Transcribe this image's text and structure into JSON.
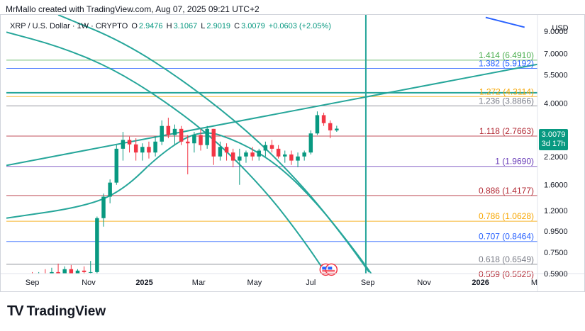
{
  "header": {
    "title": "MrMallo created with TradingView.com, Aug 07, 2025 09:21 UTC+2"
  },
  "symbol_bar": {
    "name": "XRP / U.S. Dollar · 1W · CRYPTO",
    "o_label": "O",
    "o": "2.9476",
    "h_label": "H",
    "h": "3.1067",
    "l_label": "L",
    "l": "2.9019",
    "c_label": "C",
    "c": "3.0079",
    "change": "+0.0603 (+2.05%)"
  },
  "price_tag": {
    "price": "3.0079",
    "countdown": "3d 17h",
    "color": "#089981"
  },
  "footer": {
    "logo_text": "TradingView"
  },
  "chart_data": {
    "type": "candlestick",
    "currency_label": "USD",
    "y_scale": "log",
    "ylim": [
      0.59,
      10.8
    ],
    "y_ticks": [
      {
        "label": "9.0000",
        "value": 9.0
      },
      {
        "label": "7.0000",
        "value": 7.0
      },
      {
        "label": "5.5000",
        "value": 5.5
      },
      {
        "label": "4.0000",
        "value": 4.0
      },
      {
        "label": "2.2000",
        "value": 2.2
      },
      {
        "label": "1.6000",
        "value": 1.6
      },
      {
        "label": "1.2000",
        "value": 1.2
      },
      {
        "label": "0.9500",
        "value": 0.95
      },
      {
        "label": "0.7500",
        "value": 0.75
      },
      {
        "label": "0.5900",
        "value": 0.59
      }
    ],
    "x_ticks": [
      {
        "label": "Sep",
        "week": 0
      },
      {
        "label": "Nov",
        "week": 8.7
      },
      {
        "label": "2025",
        "week": 17.3
      },
      {
        "label": "Mar",
        "week": 25.7
      },
      {
        "label": "May",
        "week": 34.3
      },
      {
        "label": "Jul",
        "week": 43.0
      },
      {
        "label": "Sep",
        "week": 51.8
      },
      {
        "label": "Nov",
        "week": 60.5
      },
      {
        "label": "2026",
        "week": 69.2
      },
      {
        "label": "M",
        "week": 77.5
      }
    ],
    "x_start_week": -4,
    "x_end_week": 78,
    "fib_levels": [
      {
        "label": "1.414 (6.4910)",
        "value": 6.491,
        "color": "#4caf50"
      },
      {
        "label": "1.382 (5.9192)",
        "value": 5.9192,
        "color": "#2962ff"
      },
      {
        "label": "1.272 (4.3114)",
        "value": 4.3114,
        "color": "#f7a600"
      },
      {
        "label": "1.236 (3.8866)",
        "value": 3.8866,
        "color": "#787b86"
      },
      {
        "label": "1.118 (2.7663)",
        "value": 2.7663,
        "color": "#b22833"
      },
      {
        "label": "1 (1.9690)",
        "value": 1.969,
        "color": "#673ab7"
      },
      {
        "label": "0.886 (1.4177)",
        "value": 1.4177,
        "color": "#b22833"
      },
      {
        "label": "0.786 (1.0628)",
        "value": 1.0628,
        "color": "#f7a600"
      },
      {
        "label": "0.707 (0.8464)",
        "value": 0.8464,
        "color": "#2962ff"
      },
      {
        "label": "0.618 (0.6549)",
        "value": 0.6549,
        "color": "#787b86"
      },
      {
        "label": "0.559 (0.5525)",
        "value": 0.5525,
        "color": "#b22833"
      }
    ],
    "horizontal_lines": [
      {
        "value": 4.5,
        "color": "#26a69a"
      }
    ],
    "vertical_lines": [
      {
        "week": 51.5,
        "color": "#26a69a"
      }
    ],
    "trendlines": [
      {
        "from": {
          "week": -4,
          "price": 1.99
        },
        "to": {
          "week": 78,
          "price": 6.2
        },
        "color": "#26a69a"
      },
      {
        "from": {
          "week": 70,
          "price": 10.5
        },
        "to": {
          "week": 76,
          "price": 9.4
        },
        "color": "#2962ff"
      }
    ],
    "curves": [
      {
        "color": "#26a69a",
        "points": [
          {
            "week": -4,
            "price": 8.9
          },
          {
            "week": 4,
            "price": 7.6
          },
          {
            "week": 12,
            "price": 6.0
          },
          {
            "week": 20,
            "price": 4.2
          },
          {
            "week": 28,
            "price": 2.7
          },
          {
            "week": 36,
            "price": 1.5
          },
          {
            "week": 42,
            "price": 0.85
          },
          {
            "week": 46,
            "price": 0.55
          }
        ]
      },
      {
        "color": "#26a69a",
        "points": [
          {
            "week": 4,
            "price": 10.8
          },
          {
            "week": 14,
            "price": 8.0
          },
          {
            "week": 24,
            "price": 5.0
          },
          {
            "week": 34,
            "price": 2.8
          },
          {
            "week": 42,
            "price": 1.55
          },
          {
            "week": 48,
            "price": 0.9
          },
          {
            "week": 52,
            "price": 0.6
          }
        ]
      },
      {
        "color": "#26a69a",
        "points": [
          {
            "week": -4,
            "price": 1.1
          },
          {
            "week": 8,
            "price": 1.25
          },
          {
            "week": 14,
            "price": 1.5
          },
          {
            "week": 20,
            "price": 2.3
          },
          {
            "week": 26,
            "price": 3.0
          },
          {
            "week": 32,
            "price": 2.6
          },
          {
            "week": 38,
            "price": 2.0
          },
          {
            "week": 44,
            "price": 1.3
          },
          {
            "week": 50,
            "price": 0.75
          },
          {
            "week": 53,
            "price": 0.55
          }
        ]
      }
    ],
    "candles": [
      {
        "w": 0,
        "o": 0.57,
        "h": 0.6,
        "l": 0.53,
        "c": 0.56
      },
      {
        "w": 1,
        "o": 0.56,
        "h": 0.6,
        "l": 0.53,
        "c": 0.58
      },
      {
        "w": 2,
        "o": 0.58,
        "h": 0.62,
        "l": 0.55,
        "c": 0.57
      },
      {
        "w": 3,
        "o": 0.57,
        "h": 0.63,
        "l": 0.55,
        "c": 0.6
      },
      {
        "w": 4,
        "o": 0.6,
        "h": 0.66,
        "l": 0.57,
        "c": 0.58
      },
      {
        "w": 5,
        "o": 0.58,
        "h": 0.64,
        "l": 0.56,
        "c": 0.62
      },
      {
        "w": 6,
        "o": 0.62,
        "h": 0.65,
        "l": 0.58,
        "c": 0.59
      },
      {
        "w": 7,
        "o": 0.59,
        "h": 0.62,
        "l": 0.56,
        "c": 0.61
      },
      {
        "w": 8,
        "o": 0.61,
        "h": 0.64,
        "l": 0.58,
        "c": 0.6
      },
      {
        "w": 9,
        "o": 0.6,
        "h": 0.68,
        "l": 0.56,
        "c": 0.6
      },
      {
        "w": 10,
        "o": 0.6,
        "h": 1.12,
        "l": 0.58,
        "c": 1.1
      },
      {
        "w": 11,
        "o": 1.1,
        "h": 1.45,
        "l": 1.0,
        "c": 1.4
      },
      {
        "w": 12,
        "o": 1.4,
        "h": 1.7,
        "l": 1.3,
        "c": 1.64
      },
      {
        "w": 13,
        "o": 1.64,
        "h": 2.5,
        "l": 1.6,
        "c": 2.4
      },
      {
        "w": 14,
        "o": 2.4,
        "h": 2.9,
        "l": 2.1,
        "c": 2.65
      },
      {
        "w": 15,
        "o": 2.65,
        "h": 2.75,
        "l": 2.3,
        "c": 2.52
      },
      {
        "w": 16,
        "o": 2.52,
        "h": 2.7,
        "l": 2.1,
        "c": 2.3
      },
      {
        "w": 17,
        "o": 2.3,
        "h": 2.55,
        "l": 2.1,
        "c": 2.45
      },
      {
        "w": 18,
        "o": 2.45,
        "h": 2.6,
        "l": 2.15,
        "c": 2.3
      },
      {
        "w": 19,
        "o": 2.3,
        "h": 2.75,
        "l": 2.2,
        "c": 2.6
      },
      {
        "w": 20,
        "o": 2.6,
        "h": 3.3,
        "l": 2.5,
        "c": 3.1
      },
      {
        "w": 21,
        "o": 3.1,
        "h": 3.4,
        "l": 2.7,
        "c": 2.8
      },
      {
        "w": 22,
        "o": 2.8,
        "h": 3.15,
        "l": 2.5,
        "c": 3.0
      },
      {
        "w": 23,
        "o": 3.0,
        "h": 3.1,
        "l": 2.5,
        "c": 2.6
      },
      {
        "w": 24,
        "o": 2.6,
        "h": 2.8,
        "l": 1.8,
        "c": 2.55
      },
      {
        "w": 25,
        "o": 2.55,
        "h": 2.9,
        "l": 2.3,
        "c": 2.8
      },
      {
        "w": 26,
        "o": 2.8,
        "h": 3.0,
        "l": 2.35,
        "c": 2.5
      },
      {
        "w": 27,
        "o": 2.5,
        "h": 3.1,
        "l": 2.4,
        "c": 3.0
      },
      {
        "w": 28,
        "o": 3.0,
        "h": 3.0,
        "l": 2.0,
        "c": 2.2
      },
      {
        "w": 29,
        "o": 2.2,
        "h": 2.6,
        "l": 2.1,
        "c": 2.45
      },
      {
        "w": 30,
        "o": 2.45,
        "h": 2.55,
        "l": 2.1,
        "c": 2.3
      },
      {
        "w": 31,
        "o": 2.3,
        "h": 2.4,
        "l": 1.95,
        "c": 2.1
      },
      {
        "w": 32,
        "o": 2.1,
        "h": 2.4,
        "l": 1.6,
        "c": 2.2
      },
      {
        "w": 33,
        "o": 2.2,
        "h": 2.35,
        "l": 2.05,
        "c": 2.3
      },
      {
        "w": 34,
        "o": 2.3,
        "h": 2.45,
        "l": 2.1,
        "c": 2.2
      },
      {
        "w": 35,
        "o": 2.2,
        "h": 2.4,
        "l": 2.1,
        "c": 2.35
      },
      {
        "w": 36,
        "o": 2.35,
        "h": 2.6,
        "l": 2.2,
        "c": 2.5
      },
      {
        "w": 37,
        "o": 2.5,
        "h": 2.65,
        "l": 2.3,
        "c": 2.4
      },
      {
        "w": 38,
        "o": 2.4,
        "h": 2.5,
        "l": 2.15,
        "c": 2.2
      },
      {
        "w": 39,
        "o": 2.2,
        "h": 2.35,
        "l": 2.05,
        "c": 2.25
      },
      {
        "w": 40,
        "o": 2.25,
        "h": 2.35,
        "l": 2.0,
        "c": 2.1
      },
      {
        "w": 41,
        "o": 2.1,
        "h": 2.3,
        "l": 1.95,
        "c": 2.2
      },
      {
        "w": 42,
        "o": 2.2,
        "h": 2.35,
        "l": 2.1,
        "c": 2.3
      },
      {
        "w": 43,
        "o": 2.3,
        "h": 2.95,
        "l": 2.25,
        "c": 2.85
      },
      {
        "w": 44,
        "o": 2.85,
        "h": 3.65,
        "l": 2.8,
        "c": 3.5
      },
      {
        "w": 45,
        "o": 3.5,
        "h": 3.6,
        "l": 3.1,
        "c": 3.2
      },
      {
        "w": 46,
        "o": 3.2,
        "h": 3.3,
        "l": 2.7,
        "c": 2.95
      },
      {
        "w": 47,
        "o": 2.9476,
        "h": 3.1067,
        "l": 2.9019,
        "c": 3.0079
      }
    ],
    "volume_blocks": [
      {
        "w": 0,
        "c": 0.5
      },
      {
        "w": 3,
        "c": 0.5
      }
    ],
    "event_icon": {
      "week": 45.3,
      "price": 0.57,
      "name": "us-flag-event-icon"
    }
  }
}
